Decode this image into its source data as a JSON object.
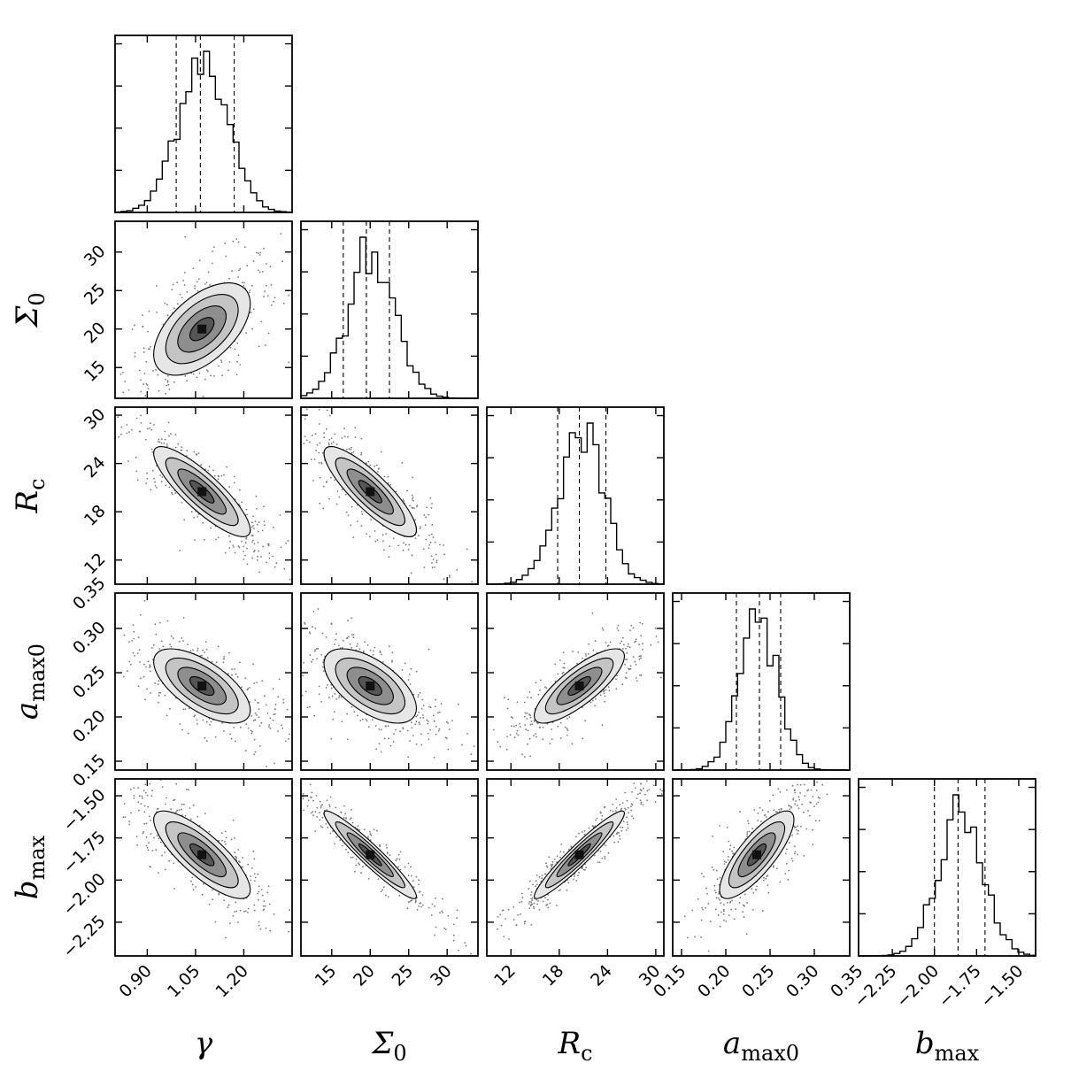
{
  "chart_data": {
    "type": "corner",
    "parameters": [
      {
        "key": "gamma",
        "label": "γ",
        "sub": "",
        "range": [
          0.8,
          1.35
        ],
        "ticks": [
          "0.90",
          "1.05",
          "1.20"
        ],
        "tick_values": [
          0.9,
          1.05,
          1.2
        ],
        "mean": 1.07,
        "sd": 0.075,
        "quantiles": [
          0.99,
          1.065,
          1.17
        ]
      },
      {
        "key": "sigma0",
        "label": "Σ",
        "sub": "0",
        "range": [
          11,
          34
        ],
        "ticks": [
          "15",
          "20",
          "25",
          "30"
        ],
        "tick_values": [
          15,
          20,
          25,
          30
        ],
        "mean": 20.0,
        "sd": 3.0,
        "quantiles": [
          16.5,
          19.5,
          22.5
        ]
      },
      {
        "key": "rc",
        "label": "R",
        "sub": "c",
        "range": [
          9,
          31
        ],
        "ticks": [
          "12",
          "18",
          "24",
          "30"
        ],
        "tick_values": [
          12,
          18,
          24,
          30
        ],
        "mean": 20.5,
        "sd": 2.8,
        "quantiles": [
          17.8,
          20.5,
          23.8
        ]
      },
      {
        "key": "amax0",
        "label": "a",
        "sub": "max0",
        "range": [
          0.14,
          0.34
        ],
        "ticks": [
          "0.15",
          "0.20",
          "0.25",
          "0.30",
          "0.35"
        ],
        "tick_values": [
          0.15,
          0.2,
          0.25,
          0.3,
          0.35
        ],
        "mean": 0.235,
        "sd": 0.021,
        "quantiles": [
          0.212,
          0.238,
          0.262
        ]
      },
      {
        "key": "bmax",
        "label": "b",
        "sub": "max",
        "range": [
          -2.45,
          -1.4
        ],
        "ticks": [
          "−2.25",
          "−2.00",
          "−1.75",
          "−1.50"
        ],
        "tick_values": [
          -2.25,
          -2.0,
          -1.75,
          -1.5
        ],
        "mean": -1.85,
        "sd": 0.13,
        "quantiles": [
          -2.0,
          -1.86,
          -1.7
        ]
      }
    ],
    "y_tick_labels": {
      "sigma0": [
        "15",
        "20",
        "25",
        "30"
      ],
      "rc": [
        "12",
        "18",
        "24",
        "30"
      ],
      "amax0": [
        "0.15",
        "0.20",
        "0.25",
        "0.30",
        "0.35"
      ],
      "bmax": [
        "−2.25",
        "−2.00",
        "−1.75",
        "−1.50"
      ]
    },
    "correlations": {
      "sigma0|gamma": 0.55,
      "rc|gamma": -0.85,
      "rc|sigma0": -0.85,
      "amax0|gamma": -0.65,
      "amax0|sigma0": -0.6,
      "amax0|rc": 0.8,
      "bmax|gamma": -0.8,
      "bmax|sigma0": -0.95,
      "bmax|rc": 0.95,
      "bmax|amax0": 0.8
    },
    "quantile_line_style": "dashed",
    "contour_levels_sigma": [
      0.5,
      1.0,
      1.5,
      2.0
    ]
  }
}
